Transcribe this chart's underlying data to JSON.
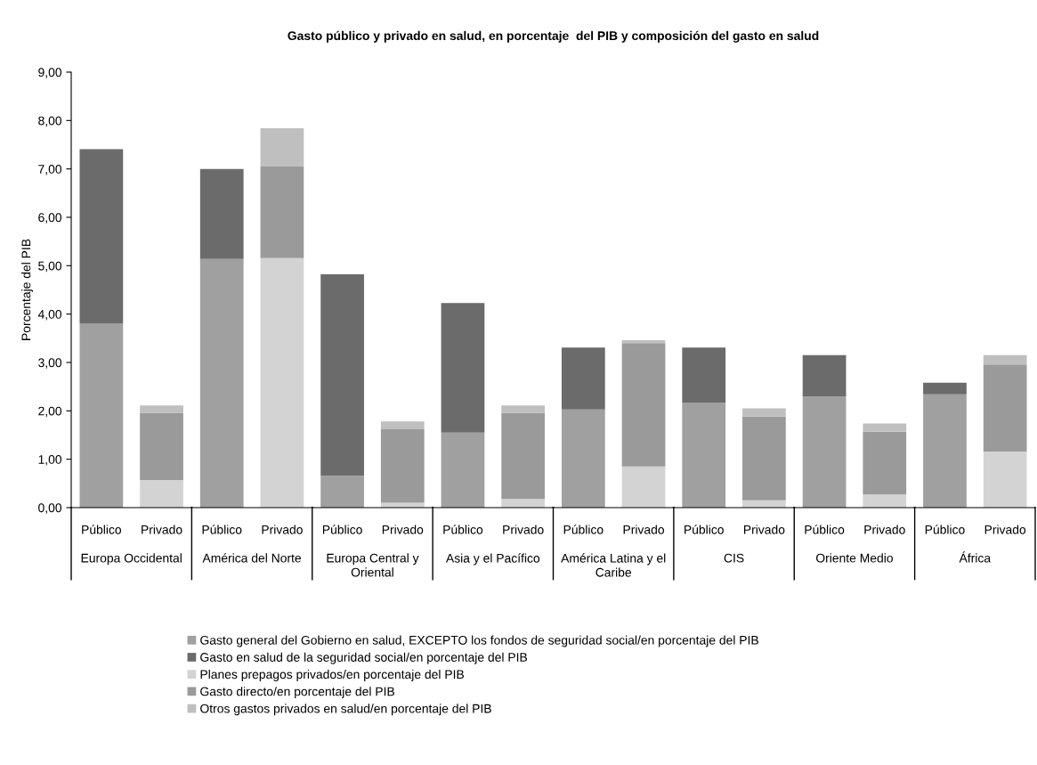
{
  "chart_data": {
    "type": "bar",
    "stacked": true,
    "title": "Gasto público y privado en salud, en porcentaje  del PIB y composición del gasto en salud",
    "ylabel": "Porcentaje del PIB",
    "categories": [
      "Público",
      "Privado",
      "Público",
      "Privado",
      "Público",
      "Privado",
      "Público",
      "Privado",
      "Público",
      "Privado",
      "Público",
      "Privado",
      "Público",
      "Privado",
      "Público",
      "Privado"
    ],
    "annotations": [
      "Europa Occidental",
      "América del Norte",
      "Europa Central y\nOriental",
      "Asia y el Pacífico",
      "América Latina y el\nCaribe",
      "CIS",
      "Oriente Medio",
      "África"
    ],
    "series": [
      {
        "name": "Gasto general del Gobierno en salud, EXCEPTO los fondos de seguridad social/en porcentaje del PIB",
        "color": "#a0a0a0",
        "values": [
          3.8,
          null,
          5.14,
          null,
          0.66,
          null,
          1.55,
          null,
          2.03,
          null,
          2.17,
          null,
          2.3,
          null,
          2.34,
          null
        ]
      },
      {
        "name": "Gasto en salud de la seguridad social/en porcentaje del PIB",
        "color": "#6b6b6b",
        "values": [
          3.61,
          null,
          1.86,
          null,
          4.16,
          null,
          2.68,
          null,
          1.28,
          null,
          1.14,
          null,
          0.85,
          null,
          0.24,
          null
        ]
      },
      {
        "name": "Planes prepagos privados/en porcentaje del PIB",
        "color": "#d3d3d3",
        "values": [
          null,
          0.57,
          null,
          5.16,
          null,
          0.1,
          null,
          0.18,
          null,
          0.85,
          null,
          0.15,
          null,
          0.27,
          null,
          1.16
        ]
      },
      {
        "name": "Gasto directo/en porcentaje del PIB",
        "color": "#9a9a9a",
        "values": [
          null,
          1.39,
          null,
          1.89,
          null,
          1.52,
          null,
          1.78,
          null,
          2.55,
          null,
          1.73,
          null,
          1.3,
          null,
          1.8
        ]
      },
      {
        "name": "Otros gastos privados en salud/en porcentaje del PIB",
        "color": "#bfbfbf",
        "values": [
          null,
          0.15,
          null,
          0.79,
          null,
          0.16,
          null,
          0.15,
          null,
          0.06,
          null,
          0.17,
          null,
          0.17,
          null,
          0.19
        ]
      }
    ],
    "ylim": [
      0,
      9
    ],
    "yticks": [
      {
        "value": 0,
        "label": "0,00"
      },
      {
        "value": 1,
        "label": "1,00"
      },
      {
        "value": 2,
        "label": "2,00"
      },
      {
        "value": 3,
        "label": "3,00"
      },
      {
        "value": 4,
        "label": "4,00"
      },
      {
        "value": 5,
        "label": "5,00"
      },
      {
        "value": 6,
        "label": "6,00"
      },
      {
        "value": 7,
        "label": "7,00"
      },
      {
        "value": 8,
        "label": "8,00"
      },
      {
        "value": 9,
        "label": "9,00"
      }
    ],
    "grid": false,
    "legend": "bottom"
  }
}
